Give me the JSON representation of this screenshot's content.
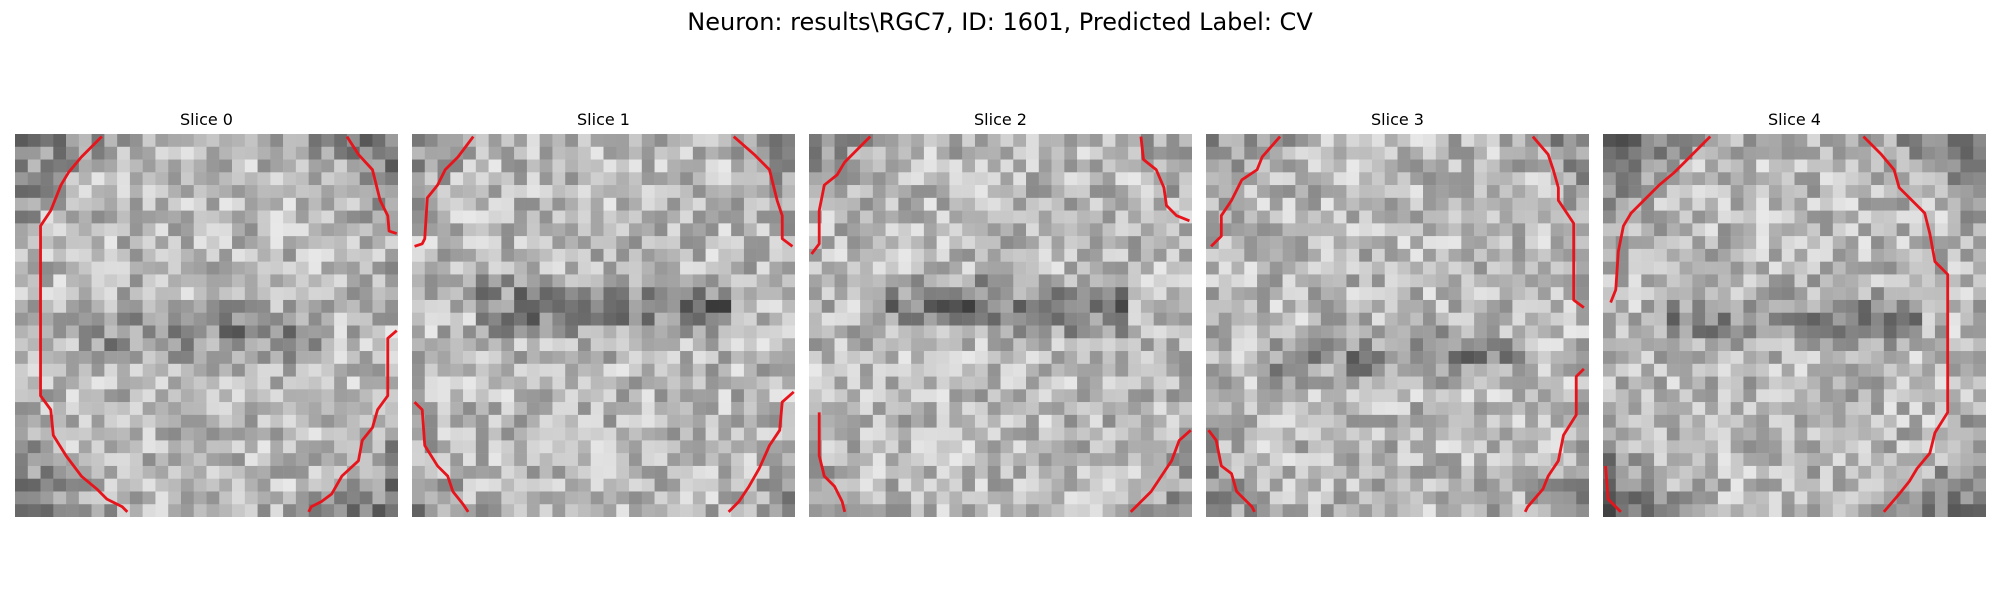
{
  "figure": {
    "title": "Neuron: results\\RGC7, ID: 1601, Predicted Label: CV"
  },
  "panels": [
    {
      "title": "Slice 0"
    },
    {
      "title": "Slice 1"
    },
    {
      "title": "Slice 2"
    },
    {
      "title": "Slice 3"
    },
    {
      "title": "Slice 4"
    }
  ],
  "colors": {
    "background": "#ffffff",
    "contour": "#e8141c",
    "colormap": "gray"
  }
}
